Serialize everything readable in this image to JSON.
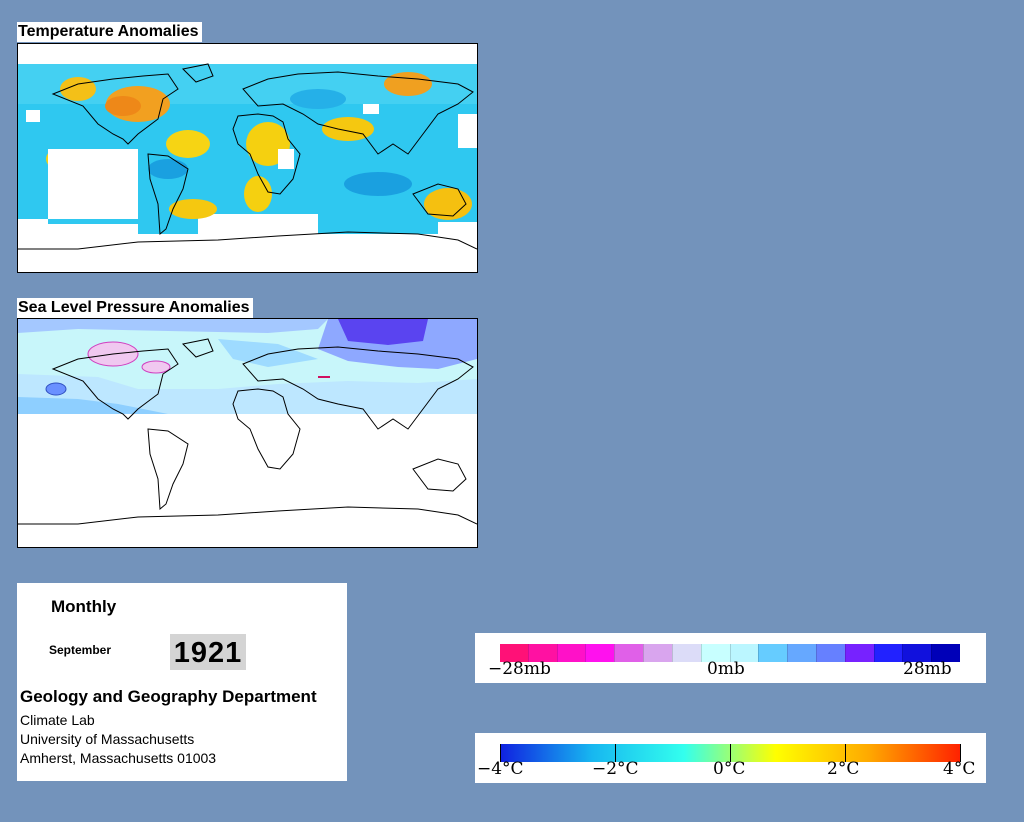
{
  "temperature_map": {
    "title": "Temperature Anomalies"
  },
  "pressure_map": {
    "title": "Sea Level Pressure Anomalies"
  },
  "info": {
    "period": "Monthly",
    "month": "September",
    "year": "1921",
    "department": "Geology and Geography Department",
    "lines": [
      "Climate Lab",
      "University of Massachusetts",
      "Amherst, Massachusetts 01003"
    ]
  },
  "pressure_legend": {
    "labels": [
      "−28mb",
      "0mb",
      "28mb"
    ],
    "colors": [
      "#ff1177",
      "#ff11a2",
      "#ff11c8",
      "#ff11ee",
      "#e060e8",
      "#d9a5ee",
      "#dcdcf8",
      "#c8ffff",
      "#bbf6ff",
      "#66ccff",
      "#66a8ff",
      "#6680ff",
      "#7722ff",
      "#2222ff",
      "#1111dd",
      "#0000b8"
    ]
  },
  "temperature_legend": {
    "labels": [
      "−4°C",
      "−2°C",
      "0°C",
      "2°C",
      "4°C"
    ],
    "gradient": [
      "#1020e0",
      "#17b7f0",
      "#33ffee",
      "#ffff00",
      "#ffaa00",
      "#ff2200"
    ]
  }
}
